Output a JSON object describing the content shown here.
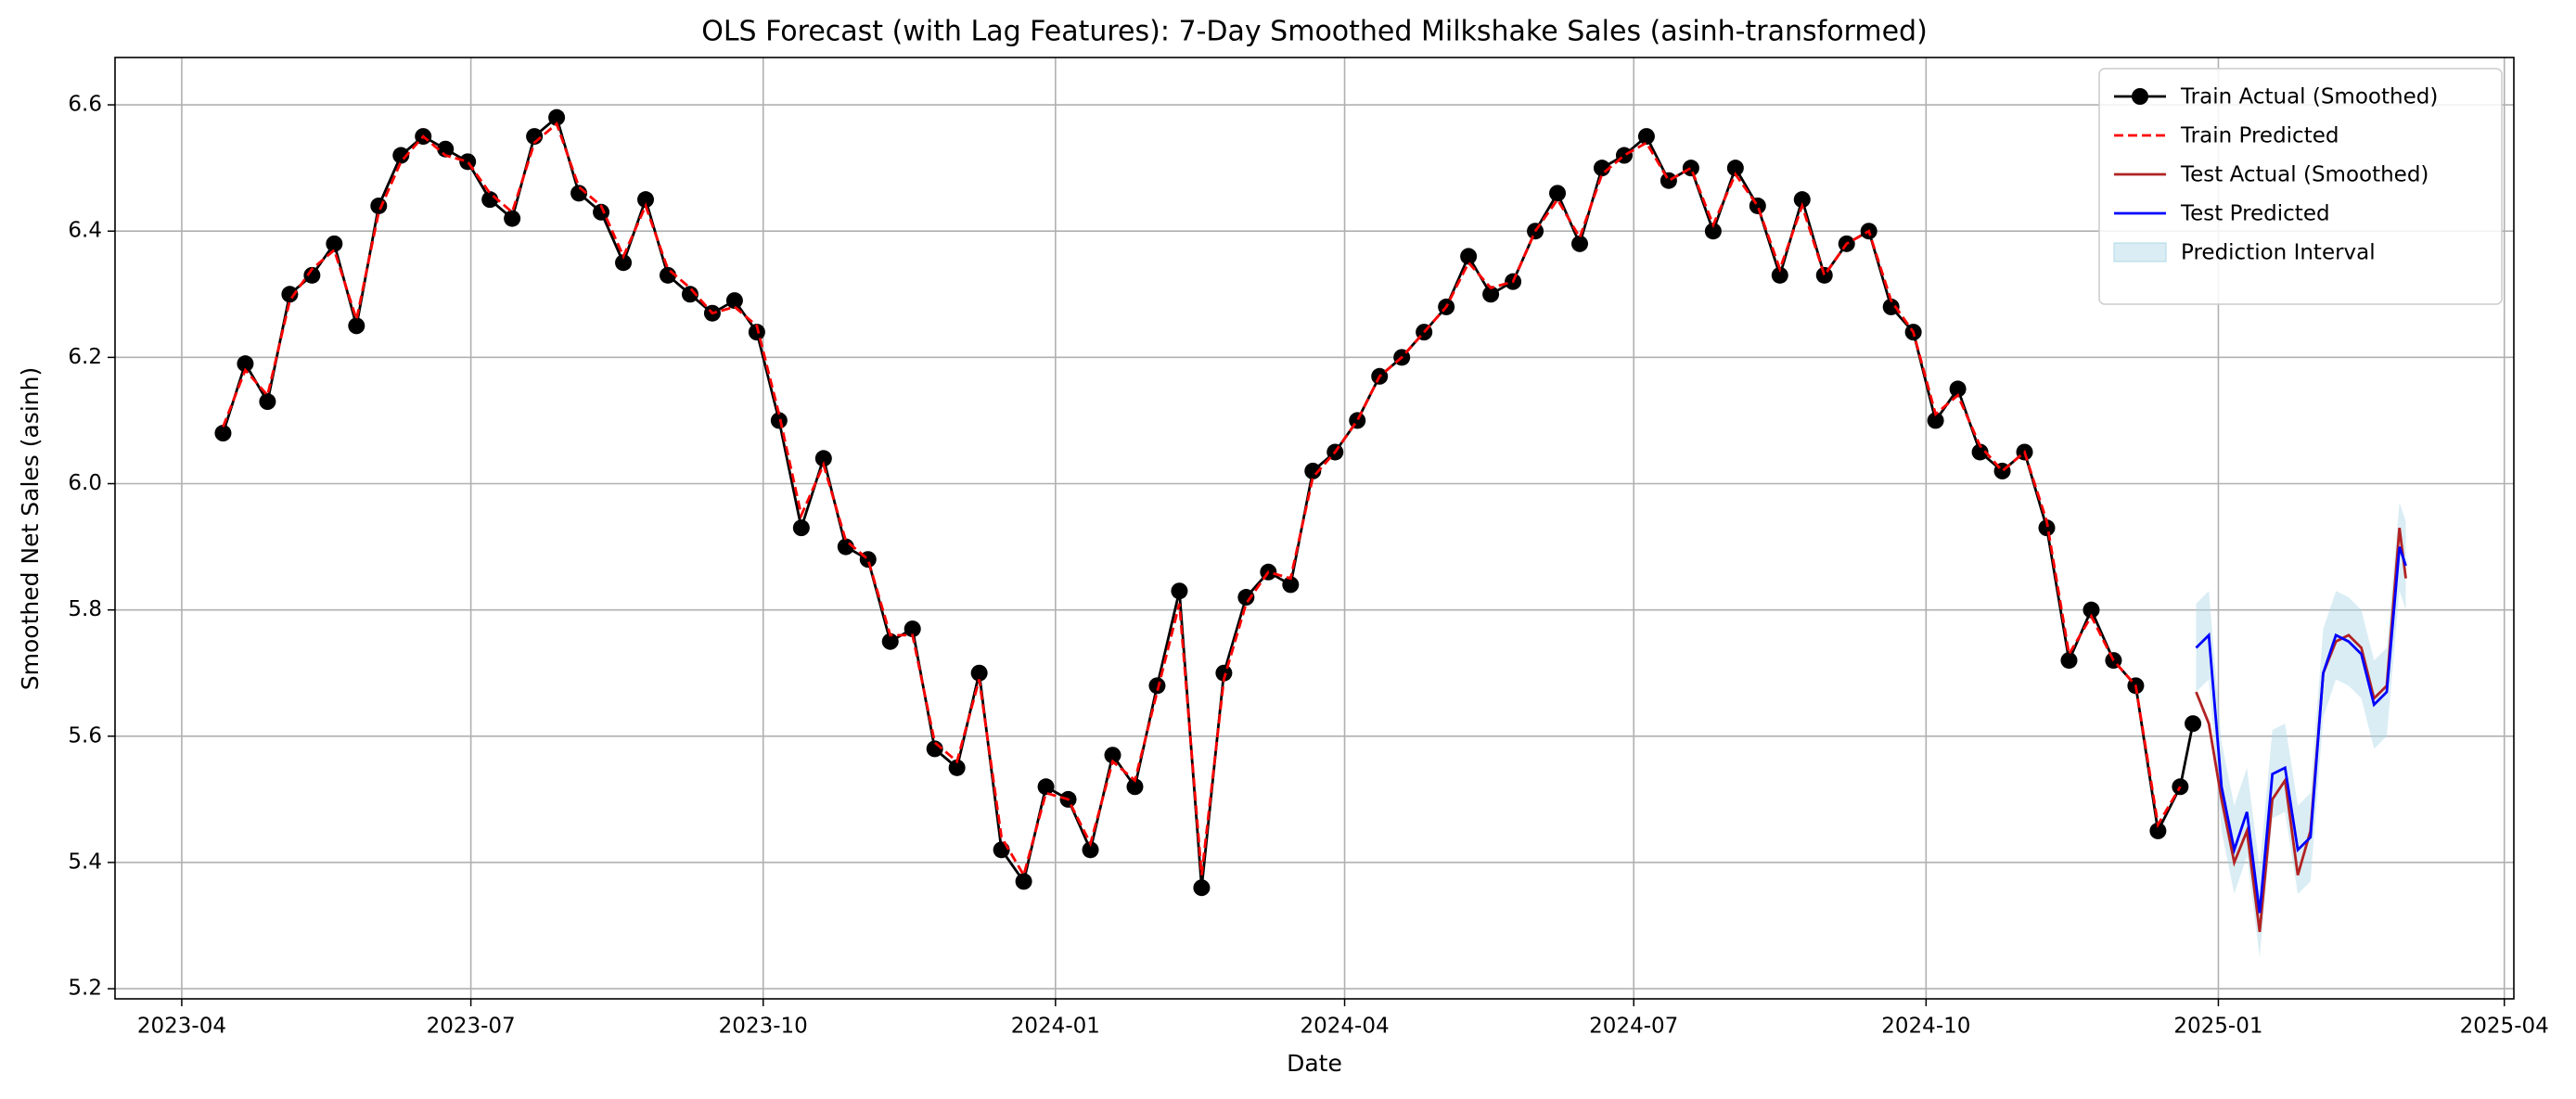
{
  "chart_data": {
    "type": "line",
    "title": "OLS Forecast (with Lag Features): 7-Day Smoothed Milkshake Sales (asinh-transformed)",
    "x_label": "Date",
    "y_label": "Smoothed Net Sales (asinh)",
    "xlim": [
      "2023-03-11",
      "2025-04-04"
    ],
    "xticks": [
      "2023-04",
      "2023-07",
      "2023-10",
      "2024-01",
      "2024-04",
      "2024-07",
      "2024-10",
      "2025-01",
      "2025-04"
    ],
    "ylim": [
      5.184,
      6.675
    ],
    "yticks": [
      {
        "value": 5.2,
        "label": "5.2"
      },
      5.4,
      5.6,
      5.8,
      {
        "value": 6.0,
        "label": "6.0"
      },
      6.2,
      6.4,
      6.6
    ],
    "grid": true,
    "legend": "upper right",
    "series": [
      {
        "name": "Train Actual (Smoothed)",
        "color": "#000000",
        "marker": "o",
        "dash": "solid",
        "x": [
          "2023-04-14",
          "2023-04-21",
          "2023-04-28",
          "2023-05-05",
          "2023-05-12",
          "2023-05-19",
          "2023-05-26",
          "2023-06-02",
          "2023-06-09",
          "2023-06-16",
          "2023-06-23",
          "2023-06-30",
          "2023-07-07",
          "2023-07-14",
          "2023-07-21",
          "2023-07-28",
          "2023-08-04",
          "2023-08-11",
          "2023-08-18",
          "2023-08-25",
          "2023-09-01",
          "2023-09-08",
          "2023-09-15",
          "2023-09-22",
          "2023-09-29",
          "2023-10-06",
          "2023-10-13",
          "2023-10-20",
          "2023-10-27",
          "2023-11-03",
          "2023-11-10",
          "2023-11-17",
          "2023-11-24",
          "2023-12-01",
          "2023-12-08",
          "2023-12-15",
          "2023-12-22",
          "2023-12-29",
          "2024-01-05",
          "2024-01-12",
          "2024-01-19",
          "2024-01-26",
          "2024-02-02",
          "2024-02-09",
          "2024-02-16",
          "2024-02-23",
          "2024-03-01",
          "2024-03-08",
          "2024-03-15",
          "2024-03-22",
          "2024-03-29",
          "2024-04-05",
          "2024-04-12",
          "2024-04-19",
          "2024-04-26",
          "2024-05-03",
          "2024-05-10",
          "2024-05-17",
          "2024-05-24",
          "2024-05-31",
          "2024-06-07",
          "2024-06-14",
          "2024-06-21",
          "2024-06-28",
          "2024-07-05",
          "2024-07-12",
          "2024-07-19",
          "2024-07-26",
          "2024-08-02",
          "2024-08-09",
          "2024-08-16",
          "2024-08-23",
          "2024-08-30",
          "2024-09-06",
          "2024-09-13",
          "2024-09-20",
          "2024-09-27",
          "2024-10-04",
          "2024-10-11",
          "2024-10-18",
          "2024-10-25",
          "2024-11-01",
          "2024-11-08",
          "2024-11-15",
          "2024-11-22",
          "2024-11-29",
          "2024-12-06",
          "2024-12-13",
          "2024-12-20",
          "2024-12-24"
        ],
        "values": [
          6.08,
          6.19,
          6.13,
          6.3,
          6.33,
          6.38,
          6.25,
          6.44,
          6.52,
          6.55,
          6.53,
          6.51,
          6.45,
          6.42,
          6.55,
          6.58,
          6.46,
          6.43,
          6.35,
          6.45,
          6.33,
          6.3,
          6.27,
          6.29,
          6.24,
          6.1,
          5.93,
          6.04,
          5.9,
          5.88,
          5.75,
          5.77,
          5.58,
          5.55,
          5.7,
          5.42,
          5.37,
          5.52,
          5.5,
          5.42,
          5.57,
          5.52,
          5.68,
          5.83,
          5.36,
          5.7,
          5.82,
          5.86,
          5.84,
          6.02,
          6.05,
          6.1,
          6.17,
          6.2,
          6.24,
          6.28,
          6.36,
          6.3,
          6.32,
          6.4,
          6.46,
          6.38,
          6.5,
          6.52,
          6.55,
          6.48,
          6.5,
          6.4,
          6.5,
          6.44,
          6.33,
          6.45,
          6.33,
          6.38,
          6.4,
          6.28,
          6.24,
          6.1,
          6.15,
          6.05,
          6.02,
          6.05,
          5.93,
          5.72,
          5.8,
          5.72,
          5.68,
          5.45,
          5.52,
          5.62
        ]
      },
      {
        "name": "Train Predicted",
        "color": "#ff0000",
        "dash": "dashed",
        "x": [
          "2023-04-14",
          "2023-04-21",
          "2023-04-28",
          "2023-05-05",
          "2023-05-12",
          "2023-05-19",
          "2023-05-26",
          "2023-06-02",
          "2023-06-09",
          "2023-06-16",
          "2023-06-23",
          "2023-06-30",
          "2023-07-07",
          "2023-07-14",
          "2023-07-21",
          "2023-07-28",
          "2023-08-04",
          "2023-08-11",
          "2023-08-18",
          "2023-08-25",
          "2023-09-01",
          "2023-09-08",
          "2023-09-15",
          "2023-09-22",
          "2023-09-29",
          "2023-10-06",
          "2023-10-13",
          "2023-10-20",
          "2023-10-27",
          "2023-11-03",
          "2023-11-10",
          "2023-11-17",
          "2023-11-24",
          "2023-12-01",
          "2023-12-08",
          "2023-12-15",
          "2023-12-22",
          "2023-12-29",
          "2024-01-05",
          "2024-01-12",
          "2024-01-19",
          "2024-01-26",
          "2024-02-02",
          "2024-02-09",
          "2024-02-16",
          "2024-02-23",
          "2024-03-01",
          "2024-03-08",
          "2024-03-15",
          "2024-03-22",
          "2024-03-29",
          "2024-04-05",
          "2024-04-12",
          "2024-04-19",
          "2024-04-26",
          "2024-05-03",
          "2024-05-10",
          "2024-05-17",
          "2024-05-24",
          "2024-05-31",
          "2024-06-07",
          "2024-06-14",
          "2024-06-21",
          "2024-06-28",
          "2024-07-05",
          "2024-07-12",
          "2024-07-19",
          "2024-07-26",
          "2024-08-02",
          "2024-08-09",
          "2024-08-16",
          "2024-08-23",
          "2024-08-30",
          "2024-09-06",
          "2024-09-13",
          "2024-09-20",
          "2024-09-27",
          "2024-10-04",
          "2024-10-11",
          "2024-10-18",
          "2024-10-25",
          "2024-11-01",
          "2024-11-08",
          "2024-11-15",
          "2024-11-22",
          "2024-11-29",
          "2024-12-06",
          "2024-12-13",
          "2024-12-20"
        ],
        "values": [
          6.09,
          6.18,
          6.14,
          6.29,
          6.34,
          6.37,
          6.26,
          6.43,
          6.51,
          6.55,
          6.52,
          6.51,
          6.46,
          6.43,
          6.54,
          6.57,
          6.47,
          6.44,
          6.36,
          6.44,
          6.34,
          6.31,
          6.27,
          6.28,
          6.25,
          6.11,
          5.95,
          6.03,
          5.91,
          5.88,
          5.76,
          5.76,
          5.59,
          5.56,
          5.69,
          5.44,
          5.38,
          5.51,
          5.5,
          5.43,
          5.56,
          5.53,
          5.67,
          5.81,
          5.38,
          5.69,
          5.81,
          5.86,
          5.85,
          6.01,
          6.05,
          6.1,
          6.17,
          6.2,
          6.24,
          6.28,
          6.35,
          6.31,
          6.32,
          6.4,
          6.45,
          6.39,
          6.49,
          6.52,
          6.54,
          6.48,
          6.5,
          6.41,
          6.49,
          6.44,
          6.34,
          6.44,
          6.33,
          6.38,
          6.4,
          6.29,
          6.24,
          6.11,
          6.14,
          6.06,
          6.02,
          6.05,
          5.94,
          5.73,
          5.79,
          5.72,
          5.68,
          5.46,
          5.52
        ]
      },
      {
        "name": "Test Actual (Smoothed)",
        "color": "#b22222",
        "dash": "solid",
        "x": [
          "2024-12-25",
          "2024-12-29",
          "2025-01-02",
          "2025-01-06",
          "2025-01-10",
          "2025-01-14",
          "2025-01-18",
          "2025-01-22",
          "2025-01-26",
          "2025-01-30",
          "2025-02-03",
          "2025-02-07",
          "2025-02-11",
          "2025-02-15",
          "2025-02-19",
          "2025-02-23",
          "2025-02-27",
          "2025-03-01"
        ],
        "values": [
          5.67,
          5.62,
          5.5,
          5.4,
          5.45,
          5.29,
          5.5,
          5.53,
          5.38,
          5.45,
          5.7,
          5.75,
          5.76,
          5.74,
          5.66,
          5.68,
          5.93,
          5.85
        ]
      },
      {
        "name": "Test Predicted",
        "color": "#0000ff",
        "dash": "solid",
        "x": [
          "2024-12-25",
          "2024-12-29",
          "2025-01-02",
          "2025-01-06",
          "2025-01-10",
          "2025-01-14",
          "2025-01-18",
          "2025-01-22",
          "2025-01-26",
          "2025-01-30",
          "2025-02-03",
          "2025-02-07",
          "2025-02-11",
          "2025-02-15",
          "2025-02-19",
          "2025-02-23",
          "2025-02-27",
          "2025-03-01"
        ],
        "values": [
          5.74,
          5.76,
          5.52,
          5.42,
          5.48,
          5.32,
          5.54,
          5.55,
          5.42,
          5.44,
          5.7,
          5.76,
          5.75,
          5.73,
          5.65,
          5.67,
          5.9,
          5.87
        ]
      },
      {
        "name": "Prediction Interval",
        "color": "#add8e6",
        "kind": "band",
        "x": [
          "2024-12-25",
          "2024-12-29",
          "2025-01-02",
          "2025-01-06",
          "2025-01-10",
          "2025-01-14",
          "2025-01-18",
          "2025-01-22",
          "2025-01-26",
          "2025-01-30",
          "2025-02-03",
          "2025-02-07",
          "2025-02-11",
          "2025-02-15",
          "2025-02-19",
          "2025-02-23",
          "2025-02-27",
          "2025-03-01"
        ],
        "lower": [
          5.67,
          5.69,
          5.45,
          5.35,
          5.41,
          5.25,
          5.47,
          5.48,
          5.35,
          5.37,
          5.63,
          5.69,
          5.68,
          5.66,
          5.58,
          5.6,
          5.83,
          5.8
        ],
        "upper": [
          5.81,
          5.83,
          5.59,
          5.49,
          5.55,
          5.39,
          5.61,
          5.62,
          5.49,
          5.51,
          5.77,
          5.83,
          5.82,
          5.8,
          5.72,
          5.74,
          5.97,
          5.94
        ]
      }
    ]
  }
}
